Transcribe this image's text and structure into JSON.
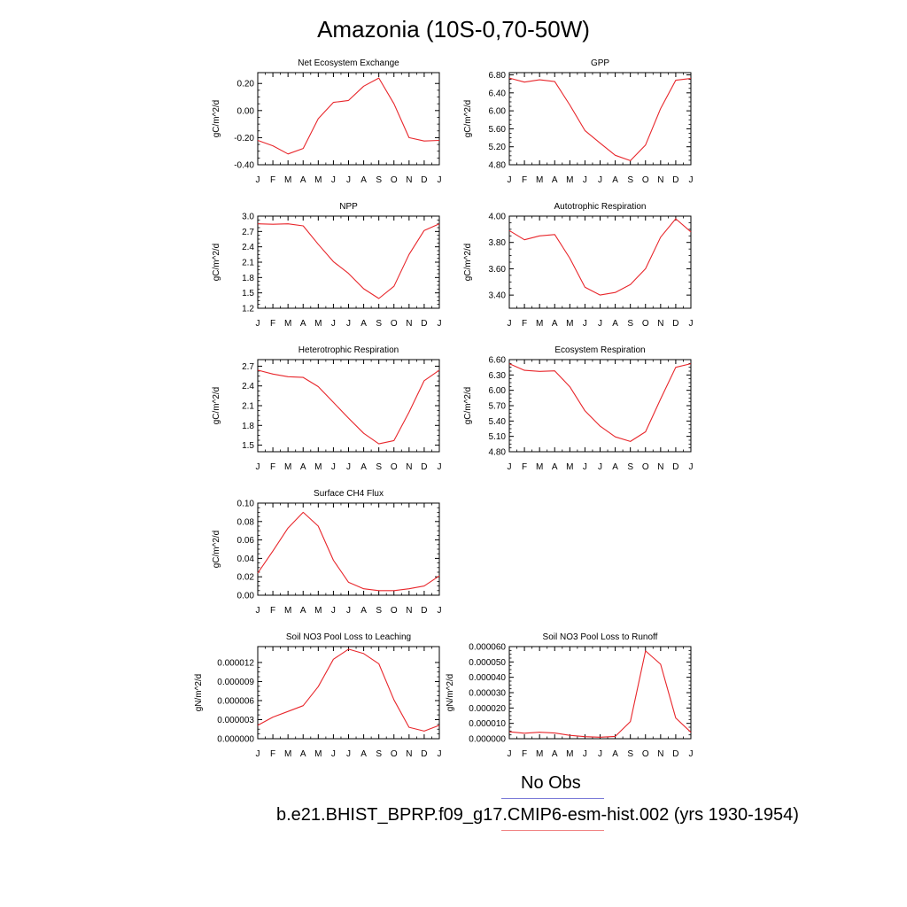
{
  "title": "Amazonia (10S-0,70-50W)",
  "legend": [
    {
      "label": "No Obs",
      "color": "#7b7bd8"
    },
    {
      "label": "b.e21.BHIST_BPRP.f09_g17.CMIP6-esm-hist.002 (yrs 1930-1954)",
      "color": "#f08080"
    }
  ],
  "line_color": "#e8262b",
  "chart_data": [
    {
      "type": "line",
      "title": "Net Ecosystem Exchange",
      "ylabel": "gC/m^2/d",
      "categories": [
        "J",
        "F",
        "M",
        "A",
        "M",
        "J",
        "J",
        "A",
        "S",
        "O",
        "N",
        "D",
        "J"
      ],
      "ylim": [
        -0.4,
        0.28
      ],
      "yticks": [
        "0.20",
        "0.00",
        "-0.20",
        "-0.40"
      ],
      "ytick_values": [
        0.2,
        0.0,
        -0.2,
        -0.4
      ],
      "series": [
        {
          "values": [
            -0.22,
            -0.26,
            -0.32,
            -0.28,
            -0.06,
            0.06,
            0.075,
            0.18,
            0.24,
            0.05,
            -0.2,
            -0.225,
            -0.22
          ]
        }
      ]
    },
    {
      "type": "line",
      "title": "GPP",
      "ylabel": "gC/m^2/d",
      "categories": [
        "J",
        "F",
        "M",
        "A",
        "M",
        "J",
        "J",
        "A",
        "S",
        "O",
        "N",
        "D",
        "J"
      ],
      "ylim": [
        4.8,
        6.85
      ],
      "yticks": [
        "6.80",
        "6.40",
        "6.00",
        "5.60",
        "5.20",
        "4.80"
      ],
      "ytick_values": [
        6.8,
        6.4,
        6.0,
        5.6,
        5.2,
        4.8
      ],
      "series": [
        {
          "values": [
            6.73,
            6.64,
            6.69,
            6.65,
            6.13,
            5.56,
            5.28,
            5.01,
            4.89,
            5.24,
            6.05,
            6.68,
            6.72
          ]
        }
      ]
    },
    {
      "type": "line",
      "title": "NPP",
      "ylabel": "gC/m^2/d",
      "categories": [
        "J",
        "F",
        "M",
        "A",
        "M",
        "J",
        "J",
        "A",
        "S",
        "O",
        "N",
        "D",
        "J"
      ],
      "ylim": [
        1.2,
        3.0
      ],
      "yticks": [
        "3.0",
        "2.7",
        "2.4",
        "2.1",
        "1.8",
        "1.5",
        "1.2"
      ],
      "ytick_values": [
        3.0,
        2.7,
        2.4,
        2.1,
        1.8,
        1.5,
        1.2
      ],
      "series": [
        {
          "values": [
            2.85,
            2.84,
            2.85,
            2.81,
            2.45,
            2.11,
            1.88,
            1.58,
            1.39,
            1.63,
            2.25,
            2.72,
            2.85
          ]
        }
      ]
    },
    {
      "type": "line",
      "title": "Autotrophic Respiration",
      "ylabel": "gC/m^2/d",
      "categories": [
        "J",
        "F",
        "M",
        "A",
        "M",
        "J",
        "J",
        "A",
        "S",
        "O",
        "N",
        "D",
        "J"
      ],
      "ylim": [
        3.3,
        4.0
      ],
      "yticks": [
        "4.00",
        "3.80",
        "3.60",
        "3.40"
      ],
      "ytick_values": [
        4.0,
        3.8,
        3.6,
        3.4
      ],
      "series": [
        {
          "values": [
            3.89,
            3.82,
            3.85,
            3.86,
            3.68,
            3.46,
            3.4,
            3.42,
            3.48,
            3.6,
            3.84,
            3.98,
            3.88
          ]
        }
      ]
    },
    {
      "type": "line",
      "title": "Heterotrophic Respiration",
      "ylabel": "gC/m^2/d",
      "categories": [
        "J",
        "F",
        "M",
        "A",
        "M",
        "J",
        "J",
        "A",
        "S",
        "O",
        "N",
        "D",
        "J"
      ],
      "ylim": [
        1.4,
        2.8
      ],
      "yticks": [
        "2.7",
        "2.4",
        "2.1",
        "1.8",
        "1.5"
      ],
      "ytick_values": [
        2.7,
        2.4,
        2.1,
        1.8,
        1.5
      ],
      "series": [
        {
          "values": [
            2.64,
            2.58,
            2.54,
            2.53,
            2.39,
            2.15,
            1.91,
            1.68,
            1.52,
            1.57,
            2.0,
            2.48,
            2.64
          ]
        }
      ]
    },
    {
      "type": "line",
      "title": "Ecosystem Respiration",
      "ylabel": "gC/m^2/d",
      "categories": [
        "J",
        "F",
        "M",
        "A",
        "M",
        "J",
        "J",
        "A",
        "S",
        "O",
        "N",
        "D",
        "J"
      ],
      "ylim": [
        4.8,
        6.6
      ],
      "yticks": [
        "6.60",
        "6.30",
        "6.00",
        "5.70",
        "5.40",
        "5.10",
        "4.80"
      ],
      "ytick_values": [
        6.6,
        6.3,
        6.0,
        5.7,
        5.4,
        5.1,
        4.8
      ],
      "series": [
        {
          "values": [
            6.52,
            6.39,
            6.37,
            6.38,
            6.07,
            5.6,
            5.3,
            5.09,
            5.0,
            5.19,
            5.83,
            6.45,
            6.52
          ]
        }
      ]
    },
    {
      "type": "line",
      "title": "Surface CH4 Flux",
      "ylabel": "gC/m^2/d",
      "categories": [
        "J",
        "F",
        "M",
        "A",
        "M",
        "J",
        "J",
        "A",
        "S",
        "O",
        "N",
        "D",
        "J"
      ],
      "ylim": [
        0.0,
        0.1
      ],
      "yticks": [
        "0.10",
        "0.08",
        "0.06",
        "0.04",
        "0.02",
        "0.00"
      ],
      "ytick_values": [
        0.1,
        0.08,
        0.06,
        0.04,
        0.02,
        0.0
      ],
      "series": [
        {
          "values": [
            0.024,
            0.048,
            0.073,
            0.09,
            0.075,
            0.038,
            0.014,
            0.007,
            0.005,
            0.005,
            0.007,
            0.01,
            0.021
          ]
        }
      ]
    },
    {
      "type": "line",
      "title": "Soil NO3 Pool Loss to Leaching",
      "ylabel": "gN/m^2/d",
      "categories": [
        "J",
        "F",
        "M",
        "A",
        "M",
        "J",
        "J",
        "A",
        "S",
        "O",
        "N",
        "D",
        "J"
      ],
      "ylim": [
        0.0,
        1.45e-05
      ],
      "yticks": [
        "0.000012",
        "0.000009",
        "0.000006",
        "0.000003",
        "0.000000"
      ],
      "ytick_values": [
        1.2e-05,
        9e-06,
        6e-06,
        3e-06,
        0.0
      ],
      "series": [
        {
          "values": [
            2.1e-06,
            3.4e-06,
            4.3e-06,
            5.2e-06,
            8.2e-06,
            1.25e-05,
            1.41e-05,
            1.34e-05,
            1.18e-05,
            6.1e-06,
            1.8e-06,
            1.2e-06,
            2.1e-06
          ]
        }
      ]
    },
    {
      "type": "line",
      "title": "Soil NO3 Pool Loss to Runoff",
      "ylabel": "gN/m^2/d",
      "categories": [
        "J",
        "F",
        "M",
        "A",
        "M",
        "J",
        "J",
        "A",
        "S",
        "O",
        "N",
        "D",
        "J"
      ],
      "ylim": [
        0.0,
        6e-05
      ],
      "yticks": [
        "0.000060",
        "0.000050",
        "0.000040",
        "0.000030",
        "0.000020",
        "0.000010",
        "0.000000"
      ],
      "ytick_values": [
        6e-05,
        5e-05,
        4e-05,
        3e-05,
        2e-05,
        1e-05,
        0.0
      ],
      "series": [
        {
          "values": [
            4.5e-06,
            3.6e-06,
            4.2e-06,
            3.7e-06,
            2.2e-06,
            1.3e-06,
            1e-06,
            1.5e-06,
            1.12e-05,
            5.72e-05,
            4.85e-05,
            1.35e-05,
            4.2e-06
          ]
        }
      ]
    }
  ]
}
